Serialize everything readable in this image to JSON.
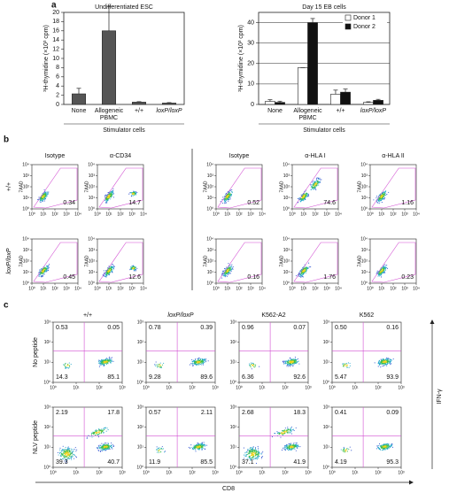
{
  "panel_labels": [
    "a",
    "b",
    "c"
  ],
  "chart_data": [
    {
      "type": "bar",
      "title": "Undifferentiated ESC",
      "categories": [
        "None",
        "Allogeneic PBMC",
        "+/+",
        "loxP/loxP"
      ],
      "x_label": "Stimulator cells",
      "y_label": "³H-thymidine (×10³ cpm)",
      "values": [
        2.3,
        16,
        0.5,
        0.3
      ],
      "errors": [
        1.2,
        5.3,
        0.1,
        0.1
      ],
      "color": "#555555",
      "ylim": [
        0,
        20
      ],
      "yticks": [
        0,
        2,
        4,
        6,
        8,
        10,
        12,
        14,
        16,
        18,
        20
      ]
    },
    {
      "type": "bar",
      "title": "Day 15 EB cells",
      "categories": [
        "None",
        "Allogeneic PBMC",
        "+/+",
        "loxP/loxP"
      ],
      "x_label": "Stimulator cells",
      "y_label": "³H-thymidine (×10³ cpm)",
      "series": [
        {
          "name": "Donor 1",
          "color": "#ffffff",
          "values": [
            1.5,
            18,
            5,
            1
          ],
          "errors": [
            0.8,
            0,
            2,
            0.3
          ]
        },
        {
          "name": "Donor 2",
          "color": "#111111",
          "values": [
            1,
            40,
            6,
            2
          ],
          "errors": [
            0.6,
            2,
            1.5,
            0.5
          ]
        }
      ],
      "ylim": [
        0,
        45
      ],
      "yticks": [
        0,
        10,
        20,
        30,
        40
      ],
      "grid": true,
      "legend": "upper-right"
    }
  ],
  "panel_b": {
    "columns": [
      "Isotype",
      "α-CD34",
      "Isotype",
      "α-HLA I",
      "α-HLA II"
    ],
    "rows": [
      "+/+",
      "loxP/loxP"
    ],
    "y_label": "7AAD",
    "ticks": [
      "10⁰",
      "10¹",
      "10²",
      "10³",
      "10⁴"
    ],
    "gate_values": [
      [
        "0.34",
        "14.7",
        "0.52",
        "74.6",
        "1.16"
      ],
      [
        "0.45",
        "12.6",
        "0.16",
        "1.76",
        "0.23"
      ]
    ]
  },
  "panel_c": {
    "columns": [
      "+/+",
      "loxP/loxP",
      "K562-A2",
      "K562"
    ],
    "rows": [
      "No peptide",
      "NLV peptide"
    ],
    "x_label": "CD8",
    "y_label": "IFN-γ",
    "ticks": [
      "10⁰",
      "10¹",
      "10²",
      "10³"
    ],
    "quadrants": [
      [
        [
          "0.53",
          "0.05",
          "14.3",
          "85.1"
        ],
        [
          "0.78",
          "0.39",
          "9.28",
          "89.6"
        ],
        [
          "0.96",
          "0.07",
          "6.36",
          "92.6"
        ],
        [
          "0.50",
          "0.16",
          "5.47",
          "93.9"
        ]
      ],
      [
        [
          "2.19",
          "17.8",
          "39.3",
          "40.7"
        ],
        [
          "0.57",
          "2.11",
          "11.9",
          "85.5"
        ],
        [
          "2.68",
          "18.3",
          "37.1",
          "41.9"
        ],
        [
          "0.41",
          "0.09",
          "4.19",
          "95.3"
        ]
      ]
    ]
  }
}
